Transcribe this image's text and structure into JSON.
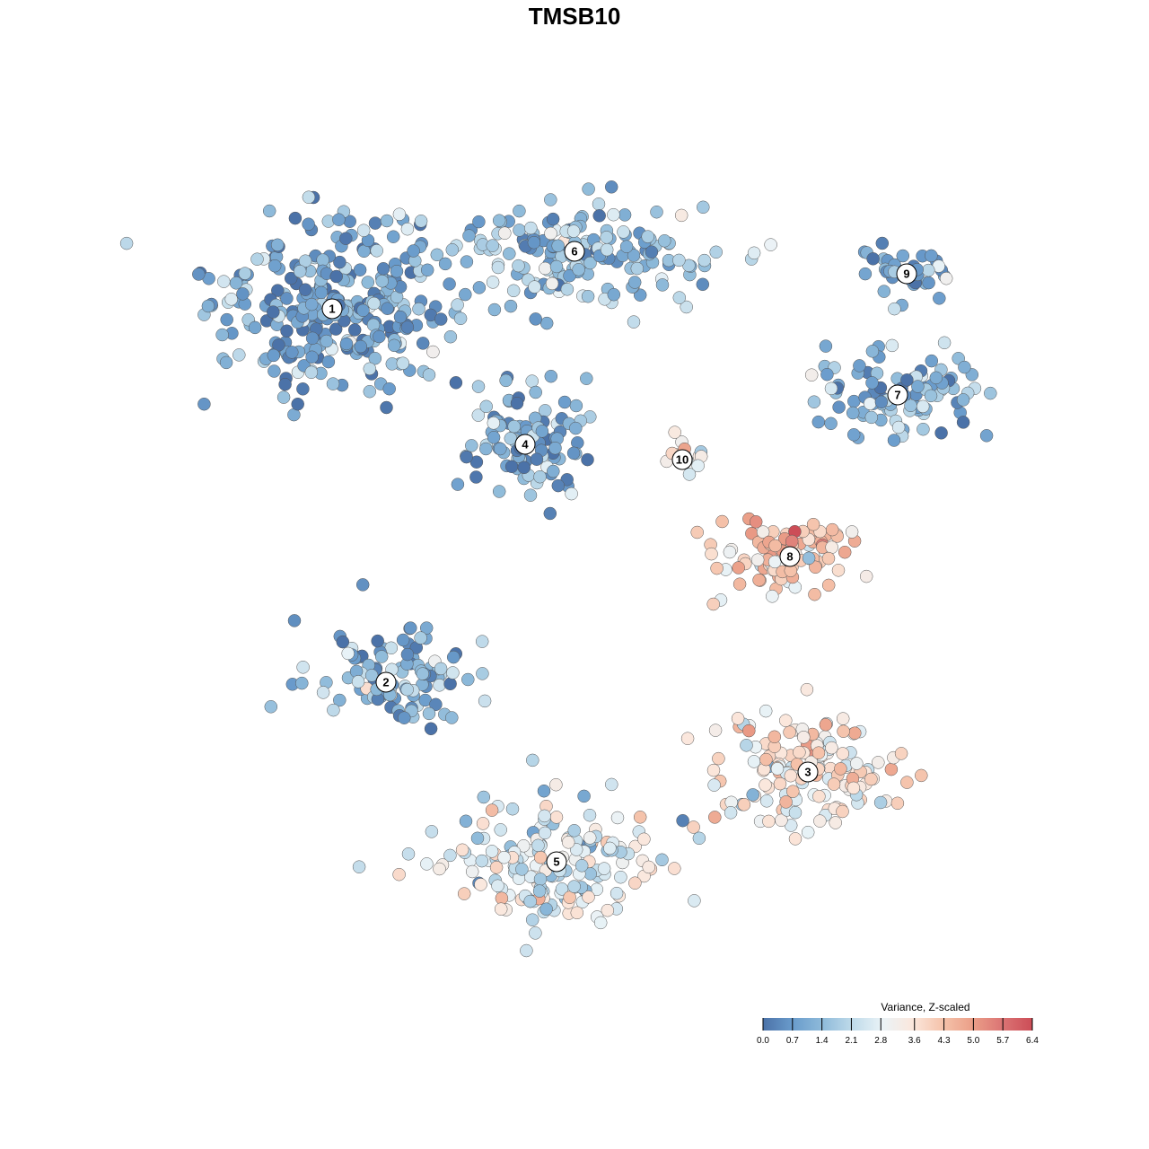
{
  "chart_data": {
    "type": "scatter",
    "title": "TMSB10",
    "legend": {
      "title": "Variance, Z-scaled",
      "ticks": [
        "0.0",
        "0.7",
        "1.4",
        "2.1",
        "2.8",
        "3.6",
        "4.3",
        "5.0",
        "5.7",
        "6.4"
      ],
      "range": [
        0.0,
        6.4
      ],
      "colors": [
        "#4b72a8",
        "#6a9ccc",
        "#8fbbda",
        "#c0dbea",
        "#eaf3f7",
        "#fbe7dc",
        "#f5c3ab",
        "#eb9f88",
        "#db7474",
        "#cc4d57"
      ],
      "position": "bottom-right"
    },
    "clusters": [
      {
        "label": "1",
        "expression": 0.9
      },
      {
        "label": "2",
        "expression": 1.2
      },
      {
        "label": "3",
        "expression": 3.3
      },
      {
        "label": "4",
        "expression": 1.0
      },
      {
        "label": "5",
        "expression": 2.6
      },
      {
        "label": "6",
        "expression": 1.4
      },
      {
        "label": "7",
        "expression": 1.1
      },
      {
        "label": "8",
        "expression": 4.2
      },
      {
        "label": "9",
        "expression": 0.9
      },
      {
        "label": "10",
        "expression": 3.4
      }
    ]
  }
}
